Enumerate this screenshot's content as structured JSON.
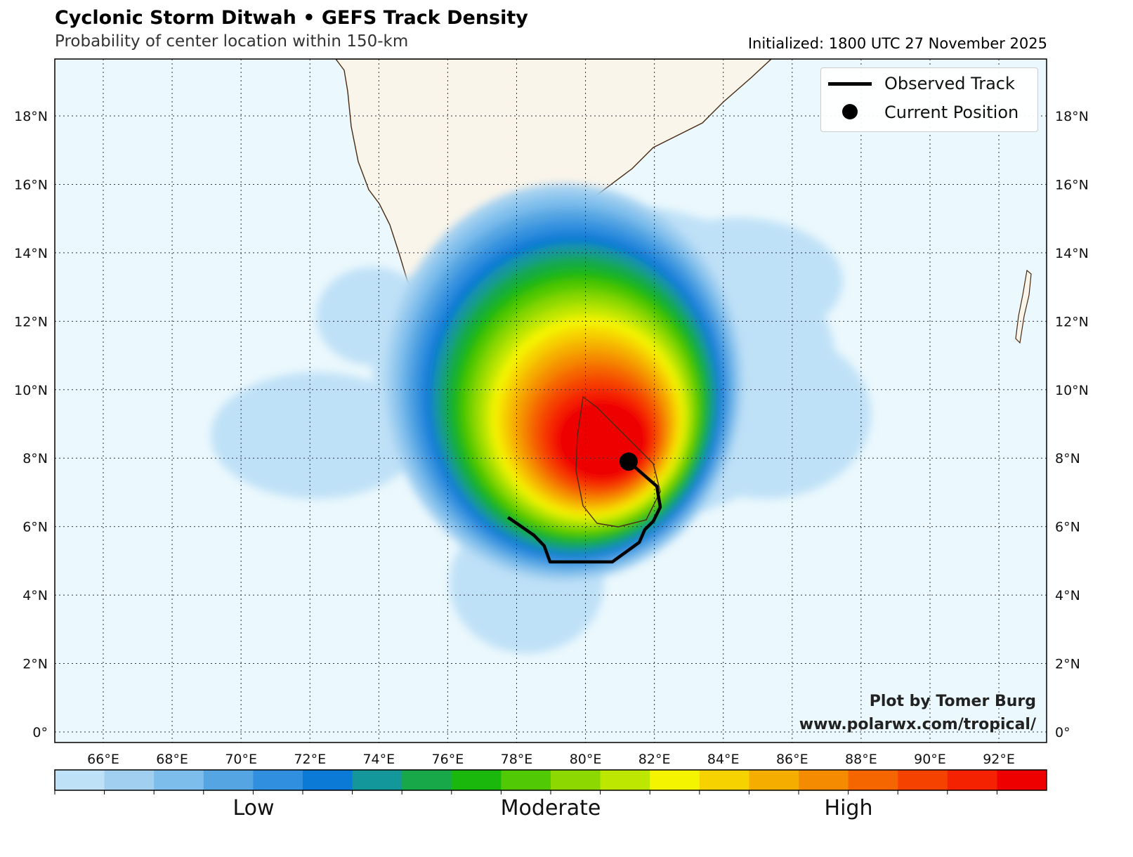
{
  "header": {
    "title": "Cyclonic Storm Ditwah • GEFS Track Density",
    "subtitle": "Probability of center location within 150-km",
    "initialized": "Initialized: 1800 UTC 27 November 2025"
  },
  "legend": {
    "observed": "Observed Track",
    "current": "Current Position"
  },
  "credit": {
    "line1": "Plot by Tomer Burg",
    "line2": "www.polarwx.com/tropical/"
  },
  "chart_data": {
    "type": "map",
    "lon_range": [
      64.6,
      93.4
    ],
    "lat_range": [
      -0.3,
      19.7
    ],
    "lon_ticks": [
      "66°E",
      "68°E",
      "70°E",
      "72°E",
      "74°E",
      "76°E",
      "78°E",
      "80°E",
      "82°E",
      "84°E",
      "86°E",
      "88°E",
      "90°E",
      "92°E"
    ],
    "lat_ticks": [
      "0°",
      "2°N",
      "4°N",
      "6°N",
      "8°N",
      "10°N",
      "12°N",
      "14°N",
      "16°N",
      "18°N"
    ],
    "observed_track": [
      [
        81.25,
        7.9
      ],
      [
        81.6,
        7.59
      ],
      [
        82.07,
        7.18
      ],
      [
        82.17,
        6.57
      ],
      [
        81.97,
        6.16
      ],
      [
        81.72,
        5.91
      ],
      [
        81.56,
        5.54
      ],
      [
        80.78,
        4.97
      ],
      [
        78.97,
        4.97
      ],
      [
        78.8,
        5.44
      ],
      [
        78.5,
        5.75
      ],
      [
        77.75,
        6.27
      ]
    ],
    "current_position": [
      81.25,
      7.9
    ],
    "colorbar": {
      "colors": [
        "#bfe1f7",
        "#a0cff0",
        "#7dbdec",
        "#55a5e2",
        "#3090df",
        "#0a7ad6",
        "#13979a",
        "#18a84a",
        "#1ab80d",
        "#52c905",
        "#8cd800",
        "#bde600",
        "#f4f400",
        "#f6d200",
        "#f5ae00",
        "#f58b00",
        "#f56500",
        "#f54200",
        "#f52200",
        "#ef0000"
      ],
      "labels": [
        "Low",
        "Moderate",
        "High"
      ]
    }
  }
}
